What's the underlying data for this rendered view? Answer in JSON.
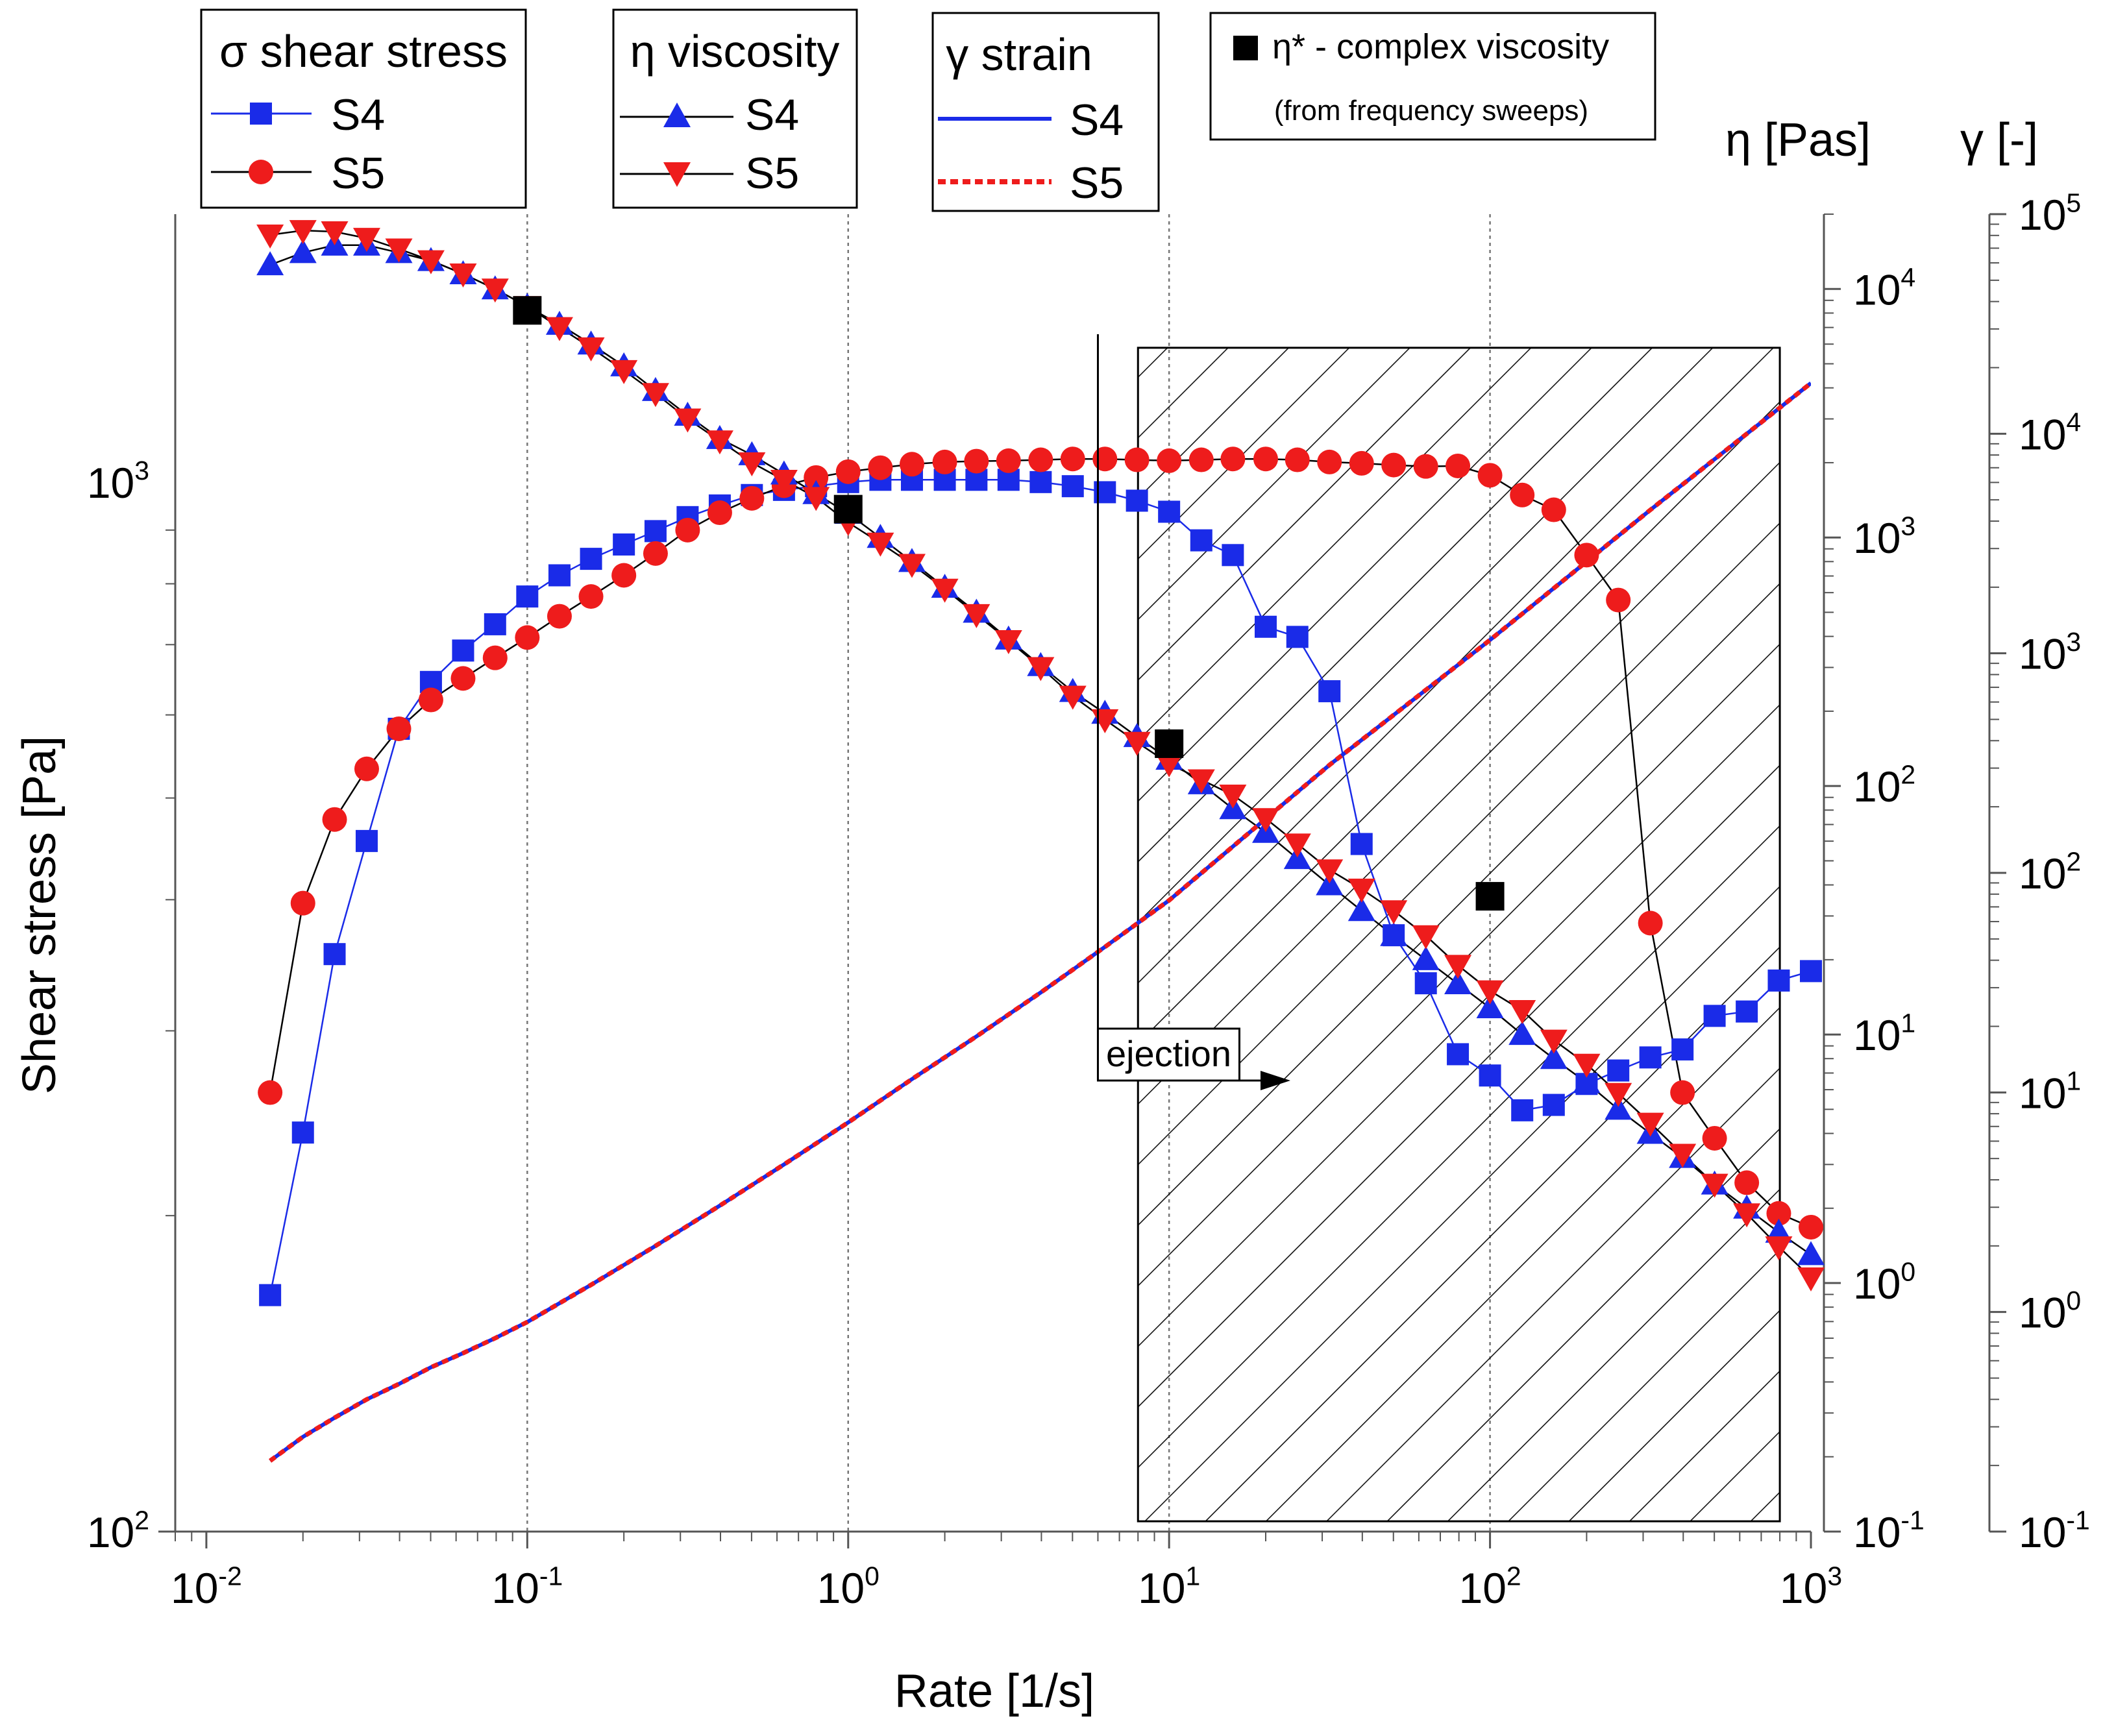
{
  "chart_data": {
    "type": "line",
    "xlabel": "Rate [1/s]",
    "ylabel": "Shear stress [Pa]",
    "y2label": "η [Pas]",
    "y3label": "γ [-]",
    "xlim": [
      0.008,
      1000
    ],
    "ylim": [
      100,
      1800
    ],
    "y2lim": [
      0.1,
      20000
    ],
    "y3lim": [
      0.1,
      100000
    ],
    "x_ticks": [
      {
        "value": 0.01,
        "base": "10",
        "exp": "-2"
      },
      {
        "value": 0.1,
        "base": "10",
        "exp": "-1"
      },
      {
        "value": 1,
        "base": "10",
        "exp": "0"
      },
      {
        "value": 10,
        "base": "10",
        "exp": "1"
      },
      {
        "value": 100,
        "base": "10",
        "exp": "2"
      },
      {
        "value": 1000,
        "base": "10",
        "exp": "3"
      }
    ],
    "y_ticks": [
      {
        "value": 100,
        "base": "10",
        "exp": "2"
      },
      {
        "value": 1000,
        "base": "10",
        "exp": "3"
      }
    ],
    "y2_ticks": [
      {
        "value": 0.1,
        "base": "10",
        "exp": "-1"
      },
      {
        "value": 1,
        "base": "10",
        "exp": "0"
      },
      {
        "value": 10,
        "base": "10",
        "exp": "1"
      },
      {
        "value": 100,
        "base": "10",
        "exp": "2"
      },
      {
        "value": 1000,
        "base": "10",
        "exp": "3"
      },
      {
        "value": 10000,
        "base": "10",
        "exp": "4"
      }
    ],
    "y3_ticks": [
      {
        "value": 0.1,
        "base": "10",
        "exp": "-1"
      },
      {
        "value": 1,
        "base": "10",
        "exp": "0"
      },
      {
        "value": 10,
        "base": "10",
        "exp": "1"
      },
      {
        "value": 100,
        "base": "10",
        "exp": "2"
      },
      {
        "value": 1000,
        "base": "10",
        "exp": "3"
      },
      {
        "value": 10000,
        "base": "10",
        "exp": "4"
      },
      {
        "value": 100000,
        "base": "10",
        "exp": "5"
      }
    ],
    "grid_x": [
      0.1,
      1,
      10,
      100
    ],
    "hatched_region": {
      "x_from": 8,
      "x_to": 800,
      "eta_from": 0.11,
      "eta_to": 5800
    },
    "annotation": {
      "text": "ejection",
      "at_rate": 6
    },
    "legends": {
      "stress": {
        "title": "σ shear stress",
        "entries": [
          "S4",
          "S5"
        ]
      },
      "viscosity": {
        "title": "η viscosity",
        "entries": [
          "S4",
          "S5"
        ]
      },
      "strain": {
        "title": "γ strain",
        "entries": [
          "S4",
          "S5"
        ]
      },
      "complex": {
        "title": "η* - complex viscosity",
        "note": "(from frequency sweeps)"
      }
    },
    "colors": {
      "blue": "#1a2be8",
      "red": "#ee1c1c",
      "black": "#000000"
    },
    "series": [
      {
        "name": "S4",
        "quantity": "shear stress",
        "axis": "y",
        "marker": "square",
        "color": "blue",
        "x": [
          0.0158,
          0.02,
          0.0251,
          0.0316,
          0.0398,
          0.0501,
          0.0631,
          0.0794,
          0.1,
          0.126,
          0.158,
          0.2,
          0.251,
          0.316,
          0.398,
          0.501,
          0.631,
          0.794,
          1,
          1.26,
          1.58,
          2,
          2.51,
          3.16,
          3.98,
          5.01,
          6.31,
          7.94,
          10,
          12.6,
          15.8,
          20,
          25.1,
          31.6,
          39.8,
          50.1,
          63.1,
          79.4,
          100,
          126,
          158,
          200,
          251,
          316,
          398,
          501,
          631,
          794,
          1000
        ],
        "y": [
          168,
          240,
          355,
          455,
          582,
          645,
          691,
          732,
          778,
          815,
          845,
          872,
          898,
          926,
          950,
          972,
          983,
          991,
          1000,
          1005,
          1005,
          1005,
          1005,
          1005,
          1000,
          991,
          978,
          960,
          937,
          880,
          852,
          728,
          712,
          632,
          452,
          370,
          333,
          285,
          272,
          252,
          255,
          267,
          275,
          283,
          288,
          310,
          313,
          335,
          342
        ]
      },
      {
        "name": "S5",
        "quantity": "shear stress",
        "axis": "y",
        "marker": "circle",
        "color": "red",
        "x": [
          0.0158,
          0.02,
          0.0251,
          0.0316,
          0.0398,
          0.0501,
          0.0631,
          0.0794,
          0.1,
          0.126,
          0.158,
          0.2,
          0.251,
          0.316,
          0.398,
          0.501,
          0.631,
          0.794,
          1,
          1.26,
          1.58,
          2,
          2.51,
          3.16,
          3.98,
          5.01,
          6.31,
          7.94,
          10,
          12.6,
          15.8,
          20,
          25.1,
          31.6,
          39.8,
          50.1,
          63.1,
          79.4,
          100,
          126,
          158,
          200,
          251,
          316,
          398,
          501,
          631,
          794,
          1000
        ],
        "y": [
          262,
          397,
          477,
          533,
          582,
          620,
          650,
          680,
          711,
          745,
          778,
          815,
          855,
          900,
          935,
          965,
          992,
          1010,
          1023,
          1032,
          1040,
          1045,
          1047,
          1048,
          1050,
          1052,
          1052,
          1050,
          1048,
          1050,
          1052,
          1052,
          1050,
          1045,
          1042,
          1038,
          1035,
          1036,
          1015,
          972,
          941,
          852,
          772,
          380,
          262,
          237,
          215,
          201,
          195
        ]
      },
      {
        "name": "S4",
        "quantity": "viscosity",
        "axis": "y2",
        "marker": "triangle-up",
        "color": "blue",
        "x": [
          0.0158,
          0.02,
          0.0251,
          0.0316,
          0.0398,
          0.0501,
          0.0631,
          0.0794,
          0.1,
          0.126,
          0.158,
          0.2,
          0.251,
          0.316,
          0.398,
          0.501,
          0.631,
          0.794,
          1,
          1.26,
          1.58,
          2,
          2.51,
          3.16,
          3.98,
          5.01,
          6.31,
          7.94,
          10,
          12.6,
          15.8,
          20,
          25.1,
          31.6,
          39.8,
          50.1,
          63.1,
          79.4,
          100,
          126,
          158,
          200,
          251,
          316,
          398,
          501,
          631,
          794,
          1000
        ],
        "y": [
          12500,
          14000,
          15000,
          15000,
          14000,
          13000,
          11500,
          10000,
          8500,
          7200,
          6000,
          4900,
          3900,
          3100,
          2500,
          2150,
          1800,
          1500,
          1250,
          1000,
          800,
          630,
          500,
          390,
          305,
          240,
          196,
          158,
          128,
          102,
          81,
          65,
          51,
          40,
          31.5,
          25,
          20,
          16,
          12.8,
          10,
          8,
          6.4,
          5,
          4,
          3.2,
          2.5,
          2,
          1.6,
          1.3
        ]
      },
      {
        "name": "S5",
        "quantity": "viscosity",
        "axis": "y2",
        "marker": "triangle-down",
        "color": "red",
        "x": [
          0.0158,
          0.02,
          0.0251,
          0.0316,
          0.0398,
          0.0501,
          0.0631,
          0.0794,
          0.1,
          0.126,
          0.158,
          0.2,
          0.251,
          0.316,
          0.398,
          0.501,
          0.631,
          0.794,
          1,
          1.26,
          1.58,
          2,
          2.51,
          3.16,
          3.98,
          5.01,
          6.31,
          7.94,
          10,
          12.6,
          15.8,
          20,
          25.1,
          31.6,
          39.8,
          50.1,
          63.1,
          79.4,
          100,
          126,
          158,
          200,
          251,
          316,
          398,
          501,
          631,
          794,
          1000
        ],
        "y": [
          16500,
          17200,
          17000,
          16000,
          14500,
          13000,
          11500,
          10000,
          8500,
          7000,
          5800,
          4700,
          3800,
          3000,
          2450,
          2000,
          1700,
          1450,
          1150,
          950,
          780,
          620,
          490,
          385,
          300,
          230,
          185,
          150,
          123,
          106,
          92,
          74,
          58.5,
          46,
          38.5,
          31.5,
          25,
          19,
          15,
          12.5,
          9.5,
          7.6,
          5.8,
          4.4,
          3.3,
          2.5,
          1.9,
          1.4,
          1.05
        ]
      },
      {
        "name": "η* complex viscosity",
        "quantity": "complex viscosity",
        "axis": "y2",
        "marker": "big-square",
        "color": "black",
        "x": [
          0.1,
          1,
          10,
          100
        ],
        "y": [
          8200,
          1300,
          148,
          36
        ]
      },
      {
        "name": "S4",
        "quantity": "strain",
        "axis": "y3",
        "style": "solid",
        "color": "blue",
        "x": [
          0.0158,
          0.02,
          0.0251,
          0.0316,
          0.0398,
          0.0501,
          0.0631,
          0.0794,
          0.1,
          0.158,
          0.251,
          0.398,
          0.631,
          1,
          1.58,
          2.51,
          3.98,
          6.31,
          10,
          31.6,
          100,
          316,
          1000
        ],
        "y": [
          0.21,
          0.27,
          0.33,
          0.4,
          0.47,
          0.56,
          0.65,
          0.76,
          0.9,
          1.33,
          2.0,
          3.05,
          4.7,
          7.3,
          11.5,
          18,
          28.5,
          46,
          75,
          310,
          1150,
          4500,
          17000
        ]
      },
      {
        "name": "S5",
        "quantity": "strain",
        "axis": "y3",
        "style": "dotted",
        "color": "red",
        "x": [
          0.0158,
          0.02,
          0.0251,
          0.0316,
          0.0398,
          0.0501,
          0.0631,
          0.0794,
          0.1,
          0.158,
          0.251,
          0.398,
          0.631,
          1,
          1.58,
          2.51,
          3.98,
          6.31,
          10,
          31.6,
          100,
          316,
          1000
        ],
        "y": [
          0.21,
          0.27,
          0.33,
          0.4,
          0.47,
          0.56,
          0.65,
          0.76,
          0.9,
          1.33,
          2.0,
          3.05,
          4.7,
          7.3,
          11.5,
          18,
          28.5,
          46,
          75,
          310,
          1150,
          4500,
          17000
        ]
      }
    ]
  }
}
